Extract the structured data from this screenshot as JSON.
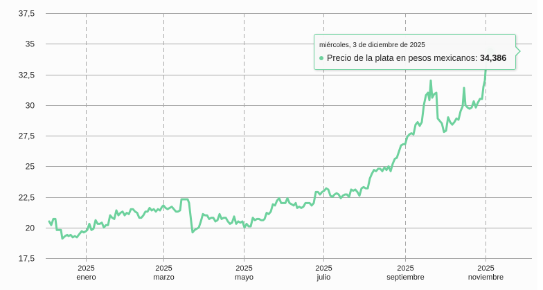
{
  "chart_data": {
    "type": "line",
    "title": "",
    "xlabel": "",
    "ylabel": "",
    "ylim": [
      17.5,
      37.5
    ],
    "yticks": [
      "17,5",
      "20",
      "22,5",
      "25",
      "27,5",
      "30",
      "32,5",
      "35",
      "37,5"
    ],
    "xticks": [
      {
        "year": "2025",
        "month": "enero"
      },
      {
        "year": "2025",
        "month": "marzo"
      },
      {
        "year": "2025",
        "month": "mayo"
      },
      {
        "year": "2025",
        "month": "julio"
      },
      {
        "year": "2025",
        "month": "septiembre"
      },
      {
        "year": "2025",
        "month": "noviembre"
      }
    ],
    "grid": {
      "horizontal": "solid",
      "vertical": "dashed"
    },
    "series": [
      {
        "name": "Precio de la plata en pesos mexicanos",
        "color": "#6dd19d",
        "points": [
          [
            0,
            20.5
          ],
          [
            3,
            20.2
          ],
          [
            6,
            20.7
          ],
          [
            9,
            20.7
          ],
          [
            11,
            19.8
          ],
          [
            14,
            19.8
          ],
          [
            17,
            19.8
          ],
          [
            19,
            19.1
          ],
          [
            23,
            19.3
          ],
          [
            26,
            19.4
          ],
          [
            28,
            19.3
          ],
          [
            31,
            19.4
          ],
          [
            34,
            19.2
          ],
          [
            37,
            19.3
          ],
          [
            40,
            19.2
          ],
          [
            44,
            19.5
          ],
          [
            47,
            19.7
          ],
          [
            50,
            19.6
          ],
          [
            53,
            19.7
          ],
          [
            55,
            19.8
          ],
          [
            58,
            20.3
          ],
          [
            61,
            19.8
          ],
          [
            64,
            19.9
          ],
          [
            67,
            20.6
          ],
          [
            70,
            20.3
          ],
          [
            73,
            20.3
          ],
          [
            76,
            20.4
          ],
          [
            79,
            20.0
          ],
          [
            82,
            20.2
          ],
          [
            85,
            20.2
          ],
          [
            88,
            21.0
          ],
          [
            91,
            20.8
          ],
          [
            94,
            20.7
          ],
          [
            97,
            21.4
          ],
          [
            100,
            21.0
          ],
          [
            103,
            21.2
          ],
          [
            106,
            21.3
          ],
          [
            109,
            21.0
          ],
          [
            112,
            21.2
          ],
          [
            115,
            21.1
          ],
          [
            118,
            21.5
          ],
          [
            121,
            21.5
          ],
          [
            124,
            21.3
          ],
          [
            127,
            21.2
          ],
          [
            130,
            20.8
          ],
          [
            133,
            20.8
          ],
          [
            136,
            21.0
          ],
          [
            139,
            21.3
          ],
          [
            142,
            21.3
          ],
          [
            145,
            21.6
          ],
          [
            148,
            21.4
          ],
          [
            151,
            21.5
          ],
          [
            154,
            21.3
          ],
          [
            157,
            21.5
          ],
          [
            160,
            21.4
          ],
          [
            163,
            21.7
          ],
          [
            165,
            21.8
          ],
          [
            168,
            21.6
          ],
          [
            171,
            21.5
          ],
          [
            174,
            21.6
          ],
          [
            177,
            21.7
          ],
          [
            180,
            21.5
          ],
          [
            183,
            21.3
          ],
          [
            186,
            21.3
          ],
          [
            189,
            21.4
          ],
          [
            191,
            22.3
          ],
          [
            194,
            22.3
          ],
          [
            197,
            22.3
          ],
          [
            200,
            22.3
          ],
          [
            202,
            22.0
          ],
          [
            205,
            20.5
          ],
          [
            207,
            19.6
          ],
          [
            210,
            19.8
          ],
          [
            213,
            19.9
          ],
          [
            216,
            20.0
          ],
          [
            219,
            20.5
          ],
          [
            222,
            21.1
          ],
          [
            225,
            21.0
          ],
          [
            228,
            21.0
          ],
          [
            231,
            20.7
          ],
          [
            234,
            20.8
          ],
          [
            237,
            20.8
          ],
          [
            240,
            20.5
          ],
          [
            243,
            20.6
          ],
          [
            246,
            21.1
          ],
          [
            249,
            20.7
          ],
          [
            252,
            20.8
          ],
          [
            255,
            20.8
          ],
          [
            258,
            20.5
          ],
          [
            261,
            20.3
          ],
          [
            264,
            20.4
          ],
          [
            267,
            20.9
          ],
          [
            270,
            20.3
          ],
          [
            273,
            20.5
          ],
          [
            276,
            20.4
          ],
          [
            279,
            20.5
          ],
          [
            282,
            20.0
          ],
          [
            285,
            20.3
          ],
          [
            288,
            20.1
          ],
          [
            291,
            20.1
          ],
          [
            294,
            20.8
          ],
          [
            297,
            20.6
          ],
          [
            300,
            20.7
          ],
          [
            303,
            20.7
          ],
          [
            306,
            20.6
          ],
          [
            309,
            20.6
          ],
          [
            311,
            20.7
          ],
          [
            314,
            21.2
          ],
          [
            317,
            21.1
          ],
          [
            320,
            21.3
          ],
          [
            323,
            21.9
          ],
          [
            326,
            21.8
          ],
          [
            329,
            22.2
          ],
          [
            332,
            22.4
          ],
          [
            335,
            22.0
          ],
          [
            338,
            22.0
          ],
          [
            341,
            22.0
          ],
          [
            344,
            22.4
          ],
          [
            347,
            22.0
          ],
          [
            350,
            21.9
          ],
          [
            353,
            21.8
          ],
          [
            356,
            22.0
          ],
          [
            358,
            21.6
          ],
          [
            361,
            21.7
          ],
          [
            364,
            21.6
          ],
          [
            367,
            21.7
          ],
          [
            370,
            22.0
          ],
          [
            373,
            22.0
          ],
          [
            376,
            22.0
          ],
          [
            379,
            21.8
          ],
          [
            382,
            22.0
          ],
          [
            385,
            22.9
          ],
          [
            388,
            22.9
          ],
          [
            391,
            22.7
          ],
          [
            394,
            22.9
          ],
          [
            397,
            23.0
          ],
          [
            400,
            23.2
          ],
          [
            403,
            23.1
          ],
          [
            406,
            22.6
          ],
          [
            409,
            22.5
          ],
          [
            412,
            22.7
          ],
          [
            415,
            22.8
          ],
          [
            418,
            22.7
          ],
          [
            421,
            22.4
          ],
          [
            424,
            22.6
          ],
          [
            427,
            22.7
          ],
          [
            430,
            22.7
          ],
          [
            433,
            22.5
          ],
          [
            436,
            23.1
          ],
          [
            439,
            23.0
          ],
          [
            442,
            23.1
          ],
          [
            445,
            22.9
          ],
          [
            448,
            22.6
          ],
          [
            451,
            23.2
          ],
          [
            454,
            23.3
          ],
          [
            457,
            23.2
          ],
          [
            460,
            23.2
          ],
          [
            463,
            24.0
          ],
          [
            466,
            24.4
          ],
          [
            469,
            24.7
          ],
          [
            472,
            24.6
          ],
          [
            475,
            24.8
          ],
          [
            478,
            24.8
          ],
          [
            481,
            24.6
          ],
          [
            484,
            24.9
          ],
          [
            487,
            24.7
          ],
          [
            490,
            25.0
          ],
          [
            493,
            24.6
          ],
          [
            496,
            25.2
          ],
          [
            499,
            25.6
          ],
          [
            502,
            25.7
          ],
          [
            505,
            26.2
          ],
          [
            508,
            26.7
          ],
          [
            511,
            26.8
          ],
          [
            514,
            26.8
          ],
          [
            517,
            27.4
          ],
          [
            520,
            27.6
          ],
          [
            523,
            27.7
          ],
          [
            526,
            27.6
          ],
          [
            529,
            28.4
          ],
          [
            532,
            28.6
          ],
          [
            535,
            28.3
          ],
          [
            538,
            28.6
          ],
          [
            541,
            30.0
          ],
          [
            544,
            30.8
          ],
          [
            547,
            31.0
          ],
          [
            549,
            30.4
          ],
          [
            551,
            32.0
          ],
          [
            553,
            30.6
          ],
          [
            556,
            30.9
          ],
          [
            559,
            31.0
          ],
          [
            561,
            28.9
          ],
          [
            564,
            28.7
          ],
          [
            567,
            28.5
          ],
          [
            570,
            27.8
          ],
          [
            573,
            27.9
          ],
          [
            576,
            29.0
          ],
          [
            579,
            28.6
          ],
          [
            582,
            28.4
          ],
          [
            585,
            28.6
          ],
          [
            588,
            28.9
          ],
          [
            591,
            28.8
          ],
          [
            594,
            29.5
          ],
          [
            597,
            29.9
          ],
          [
            599,
            31.4
          ],
          [
            601,
            30.0
          ],
          [
            604,
            29.8
          ],
          [
            607,
            29.7
          ],
          [
            610,
            29.8
          ],
          [
            613,
            30.3
          ],
          [
            616,
            29.8
          ],
          [
            619,
            30.2
          ],
          [
            622,
            30.5
          ],
          [
            625,
            30.5
          ],
          [
            627,
            31.5
          ],
          [
            629,
            32.0
          ],
          [
            631,
            33.5
          ],
          [
            634,
            34.1
          ],
          [
            637,
            34.386
          ]
        ]
      }
    ],
    "legend": null
  },
  "tooltip": {
    "date": "miércoles, 3 de diciembre de 2025",
    "series_label": "Precio de la plata en pesos mexicanos: ",
    "value": "34,386"
  }
}
